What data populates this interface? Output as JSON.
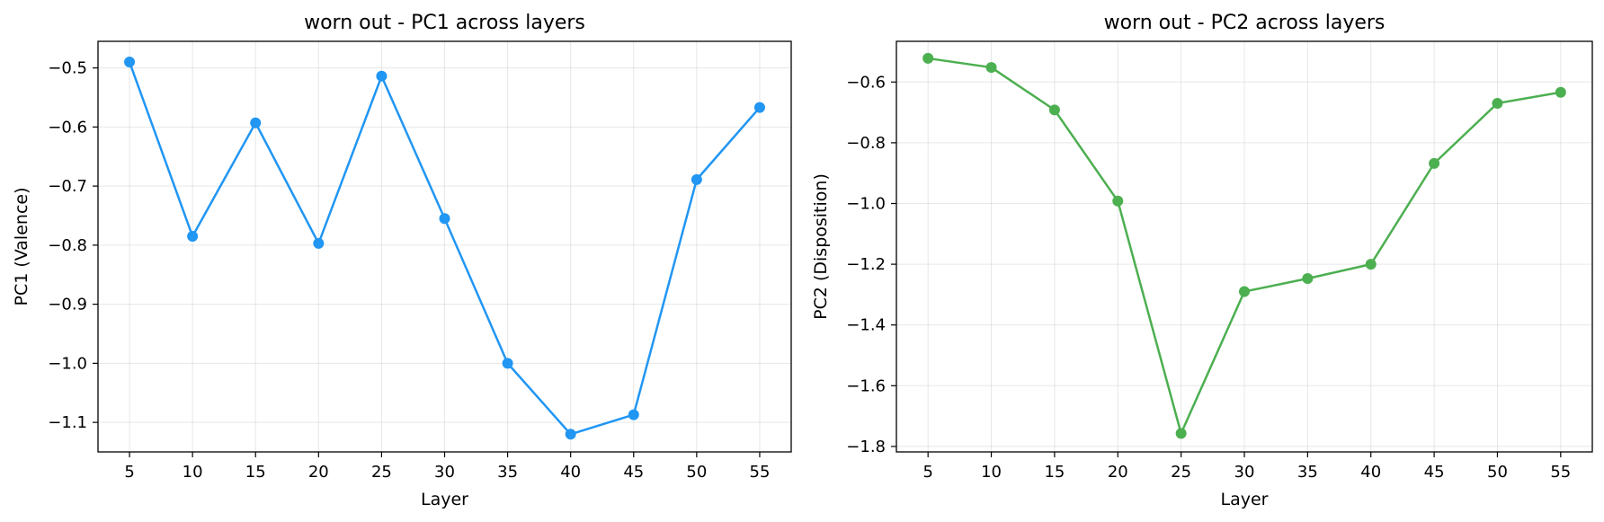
{
  "chart_data": [
    {
      "type": "line",
      "title": "worn out - PC1 across layers",
      "xlabel": "Layer",
      "ylabel": "PC1 (Valence)",
      "x": [
        5,
        10,
        15,
        20,
        25,
        30,
        35,
        40,
        45,
        50,
        55
      ],
      "series": [
        {
          "values": [
            -0.49,
            -0.785,
            -0.593,
            -0.797,
            -0.514,
            -0.755,
            -1.0,
            -1.12,
            -1.087,
            -0.689,
            -0.567
          ]
        }
      ],
      "xticks": [
        "5",
        "10",
        "15",
        "20",
        "25",
        "30",
        "35",
        "40",
        "45",
        "50",
        "55"
      ],
      "yticks": [
        -0.5,
        -0.6,
        -0.7,
        -0.8,
        -0.9,
        -1.0,
        -1.1
      ],
      "ytick_labels": [
        "−0.5",
        "−0.6",
        "−0.7",
        "−0.8",
        "−0.9",
        "−1.0",
        "−1.1"
      ],
      "xlim": [
        2.5,
        57.5
      ],
      "ylim": [
        -1.15,
        -0.455
      ],
      "color": "#2196F3",
      "grid": true
    },
    {
      "type": "line",
      "title": "worn out - PC2 across layers",
      "xlabel": "Layer",
      "ylabel": "PC2 (Disposition)",
      "x": [
        5,
        10,
        15,
        20,
        25,
        30,
        35,
        40,
        45,
        50,
        55
      ],
      "series": [
        {
          "values": [
            -0.522,
            -0.552,
            -0.692,
            -0.992,
            -1.757,
            -1.29,
            -1.247,
            -1.2,
            -0.868,
            -0.67,
            -0.634
          ]
        }
      ],
      "xticks": [
        "5",
        "10",
        "15",
        "20",
        "25",
        "30",
        "35",
        "40",
        "45",
        "50",
        "55"
      ],
      "yticks": [
        -0.6,
        -0.8,
        -1.0,
        -1.2,
        -1.4,
        -1.6,
        -1.8
      ],
      "ytick_labels": [
        "−0.6",
        "−0.8",
        "−1.0",
        "−1.2",
        "−1.4",
        "−1.6",
        "−1.8"
      ],
      "xlim": [
        2.5,
        57.5
      ],
      "ylim": [
        -1.818,
        -0.466
      ],
      "color": "#4CAF50",
      "grid": true
    }
  ]
}
